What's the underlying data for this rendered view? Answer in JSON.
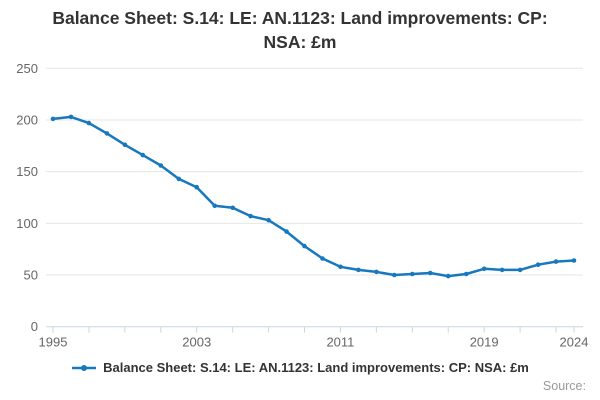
{
  "title": "Balance Sheet: S.14: LE: AN.1123: Land improvements: CP: NSA: £m",
  "legend": {
    "label": "Balance Sheet: S.14: LE: AN.1123: Land improvements: CP: NSA: £m"
  },
  "source_label": "Source:",
  "colors": {
    "line": "#1878be",
    "grid": "#e6e6e6",
    "axis": "#ccd6eb",
    "tick": "#ccd6eb",
    "axis_label": "#666666",
    "title": "#333333",
    "source": "#999999"
  },
  "chart_data": {
    "type": "line",
    "title": "Balance Sheet: S.14: LE: AN.1123: Land improvements: CP: NSA: £m",
    "xlabel": "",
    "ylabel": "",
    "x": [
      1995,
      1996,
      1997,
      1998,
      1999,
      2000,
      2001,
      2002,
      2003,
      2004,
      2005,
      2006,
      2007,
      2008,
      2009,
      2010,
      2011,
      2012,
      2013,
      2014,
      2015,
      2016,
      2017,
      2018,
      2019,
      2020,
      2021,
      2022,
      2023,
      2024
    ],
    "series": [
      {
        "name": "Balance Sheet: S.14: LE: AN.1123: Land improvements: CP: NSA: £m",
        "values": [
          201,
          203,
          197,
          187,
          176,
          166,
          156,
          143,
          135,
          117,
          115,
          107,
          103,
          92,
          78,
          66,
          58,
          55,
          53,
          50,
          51,
          52,
          49,
          51,
          56,
          55,
          55,
          60,
          63,
          64
        ]
      }
    ],
    "ylim": [
      0,
      250
    ],
    "yticks": [
      0,
      50,
      100,
      150,
      200,
      250
    ],
    "xticks_labeled": [
      1995,
      2003,
      2011,
      2019,
      2024
    ],
    "xtick_minor_interval": 2,
    "grid": true,
    "legend_position": "bottom",
    "marker": "circle"
  }
}
